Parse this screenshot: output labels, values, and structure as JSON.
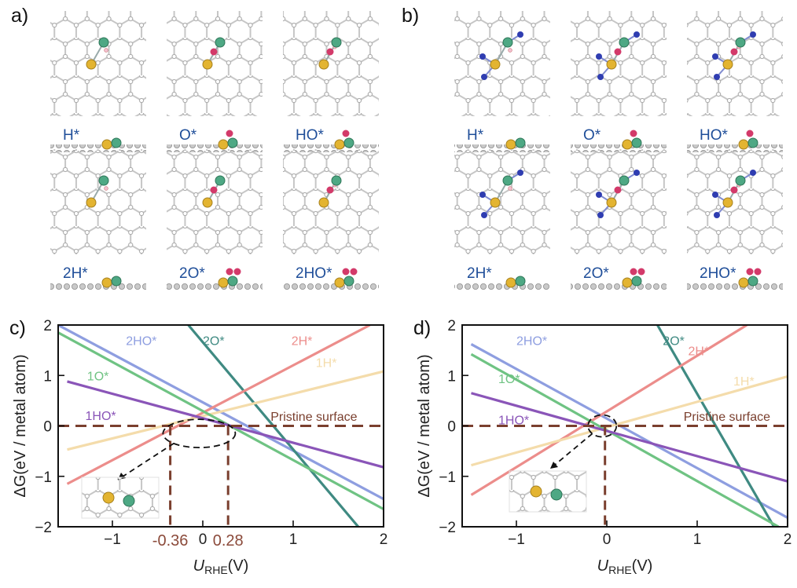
{
  "panels": {
    "a": {
      "letter": "a)",
      "structures": [
        {
          "label": "H*"
        },
        {
          "label": "O*"
        },
        {
          "label": "HO*"
        },
        {
          "label": "2H*"
        },
        {
          "label": "2O*"
        },
        {
          "label": "2HO*"
        }
      ]
    },
    "b": {
      "letter": "b)",
      "structures": [
        {
          "label": "H*"
        },
        {
          "label": "O*"
        },
        {
          "label": "HO*"
        },
        {
          "label": "2H*"
        },
        {
          "label": "2O*"
        },
        {
          "label": "2HO*"
        }
      ]
    }
  },
  "colors": {
    "s2HO": "#8e9ee0",
    "s2O": "#3f8a82",
    "s2H": "#ec8d8b",
    "s1H": "#f4dcab",
    "s1O": "#6fc383",
    "s1HO": "#8a55b8",
    "pristine": "#7a3f2e",
    "carbon": "#bdbdbd",
    "gold": "#e3b431",
    "green": "#4ea884",
    "red": "#d33a6a",
    "blue": "#2f3db1"
  },
  "chart_data": [
    {
      "panel": "c)",
      "type": "line",
      "xlabel_italic": "U",
      "xlabel_sub": "RHE",
      "xlabel_rest": "(V)",
      "ylabel": "ΔG(eV / metal atom)",
      "xlim": [
        -1.6,
        2.0
      ],
      "ylim": [
        -2,
        2
      ],
      "xticks": [
        -1,
        0,
        1,
        2
      ],
      "yticks": [
        -2,
        -1,
        0,
        1,
        2
      ],
      "xtick_labels": [
        "−1",
        "0",
        "1",
        "2"
      ],
      "ytick_labels": [
        "−2",
        "−1",
        "0",
        "1",
        "2"
      ],
      "series": [
        {
          "name": "2HO*",
          "color_key": "s2HO",
          "x": [
            -1.6,
            2.0
          ],
          "y": [
            2.0,
            -1.45
          ]
        },
        {
          "name": "2O*",
          "color_key": "s2O",
          "x": [
            -0.16,
            1.72
          ],
          "y": [
            2.0,
            -2.0
          ]
        },
        {
          "name": "2H*",
          "color_key": "s2H",
          "x": [
            -1.5,
            1.85
          ],
          "y": [
            -1.15,
            2.0
          ]
        },
        {
          "name": "1H*",
          "color_key": "s1H",
          "x": [
            -1.5,
            2.0
          ],
          "y": [
            -0.47,
            1.08
          ]
        },
        {
          "name": "1O*",
          "color_key": "s1O",
          "x": [
            -1.6,
            2.0
          ],
          "y": [
            1.85,
            -1.65
          ]
        },
        {
          "name": "1HO*",
          "color_key": "s1HO",
          "x": [
            -1.5,
            2.0
          ],
          "y": [
            0.88,
            -0.82
          ]
        }
      ],
      "baseline": {
        "name": "Pristine surface",
        "y": 0
      },
      "markers": [
        {
          "x": -0.36,
          "label": "-0.36"
        },
        {
          "x": 0.28,
          "label": "0.28"
        }
      ]
    },
    {
      "panel": "d)",
      "type": "line",
      "xlabel_italic": "U",
      "xlabel_sub": "RHE",
      "xlabel_rest": "(V)",
      "ylabel": "ΔG(eV / metal atom)",
      "xlim": [
        -1.6,
        2.0
      ],
      "ylim": [
        -2,
        2
      ],
      "xticks": [
        -1,
        0,
        1,
        2
      ],
      "yticks": [
        -2,
        -1,
        0,
        1,
        2
      ],
      "xtick_labels": [
        "−1",
        "0",
        "1",
        "2"
      ],
      "ytick_labels": [
        "−2",
        "−1",
        "0",
        "1",
        "2"
      ],
      "series": [
        {
          "name": "2HO*",
          "color_key": "s2HO",
          "x": [
            -1.5,
            2.0
          ],
          "y": [
            1.62,
            -1.82
          ]
        },
        {
          "name": "2O*",
          "color_key": "s2O",
          "x": [
            0.56,
            1.85
          ],
          "y": [
            2.0,
            -2.0
          ]
        },
        {
          "name": "2H*",
          "color_key": "s2H",
          "x": [
            -1.5,
            1.55
          ],
          "y": [
            -1.37,
            2.0
          ]
        },
        {
          "name": "1H*",
          "color_key": "s1H",
          "x": [
            -1.5,
            2.0
          ],
          "y": [
            -0.78,
            0.98
          ]
        },
        {
          "name": "1O*",
          "color_key": "s1O",
          "x": [
            -1.5,
            1.9
          ],
          "y": [
            1.42,
            -2.0
          ]
        },
        {
          "name": "1HO*",
          "color_key": "s1HO",
          "x": [
            -1.5,
            2.0
          ],
          "y": [
            0.65,
            -1.1
          ]
        }
      ],
      "baseline": {
        "name": "Pristine surface",
        "y": 0
      },
      "markers": [
        {
          "x": -0.02,
          "label": ""
        }
      ]
    }
  ]
}
